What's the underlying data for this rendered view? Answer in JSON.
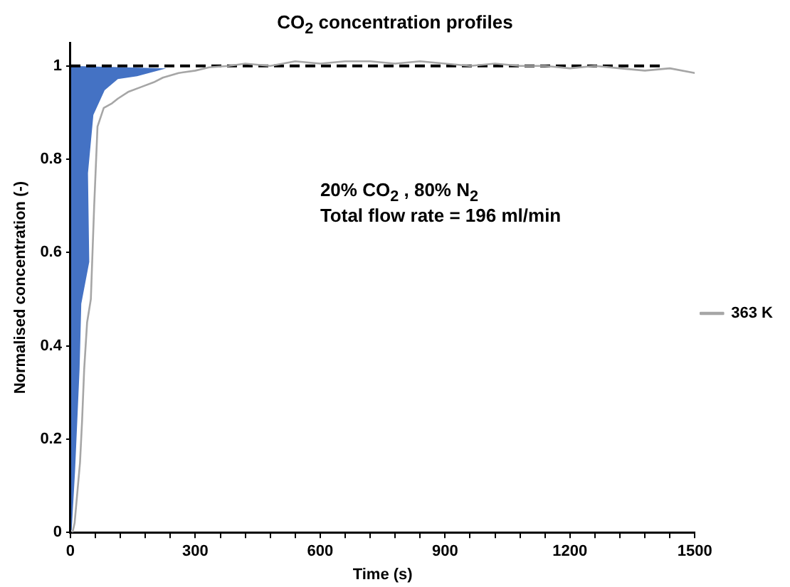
{
  "chart_data": {
    "type": "line",
    "title": "CO$_{2}$ concentration profiles",
    "xlabel": "Time (s)",
    "ylabel": "Normalised concentration (-)",
    "annotations": [
      "20% CO$_{2}$ , 80% N$_{2}$",
      "Total flow rate = 196 ml/min"
    ],
    "series": [
      {
        "name": "363 K",
        "color": "#a6a6a6",
        "x": [
          5,
          10,
          16,
          23,
          28,
          33,
          40,
          49,
          57,
          65,
          80,
          100,
          114,
          140,
          170,
          200,
          222,
          260,
          300,
          333,
          380,
          420,
          480,
          540,
          600,
          660,
          720,
          780,
          840,
          900,
          960,
          1020,
          1080,
          1140,
          1200,
          1260,
          1320,
          1380,
          1440,
          1500
        ],
        "values": [
          0,
          0.02,
          0.08,
          0.15,
          0.24,
          0.35,
          0.45,
          0.5,
          0.7,
          0.87,
          0.91,
          0.92,
          0.93,
          0.945,
          0.955,
          0.965,
          0.975,
          0.985,
          0.99,
          0.997,
          1.0,
          1.005,
          1.0,
          1.01,
          1.005,
          1.01,
          1.01,
          1.005,
          1.01,
          1.005,
          1.0,
          1.005,
          1.0,
          1.0,
          0.995,
          1.0,
          0.995,
          0.99,
          0.995,
          0.985
        ]
      },
      {
        "color": "#000000",
        "line_style": "dashed",
        "x": [
          0,
          1420
        ],
        "values": [
          1,
          1
        ]
      }
    ],
    "xlim": [
      0,
      1500
    ],
    "xticks": [
      0,
      {
        "value": 60,
        "label": null
      },
      {
        "value": 120,
        "label": null
      },
      {
        "value": 180,
        "label": null
      },
      {
        "value": 240,
        "label": null
      },
      300,
      {
        "value": 360,
        "label": null
      },
      {
        "value": 420,
        "label": null
      },
      {
        "value": 480,
        "label": null
      },
      {
        "value": 540,
        "label": null
      },
      600,
      {
        "value": 660,
        "label": null
      },
      {
        "value": 720,
        "label": null
      },
      {
        "value": 780,
        "label": null
      },
      {
        "value": 840,
        "label": null
      },
      900,
      {
        "value": 960,
        "label": null
      },
      {
        "value": 1020,
        "label": null
      },
      {
        "value": 1080,
        "label": null
      },
      {
        "value": 1140,
        "label": null
      },
      1200,
      {
        "value": 1260,
        "label": null
      },
      {
        "value": 1320,
        "label": null
      },
      {
        "value": 1380,
        "label": null
      },
      {
        "value": 1440,
        "label": null
      },
      1500
    ],
    "ylim": [
      0,
      1.05
    ],
    "yticks": [
      0,
      0.2,
      0.4,
      0.6,
      0.8,
      1
    ],
    "grid": false,
    "legend": "right",
    "marker": "none",
    "line_style": "solid"
  }
}
